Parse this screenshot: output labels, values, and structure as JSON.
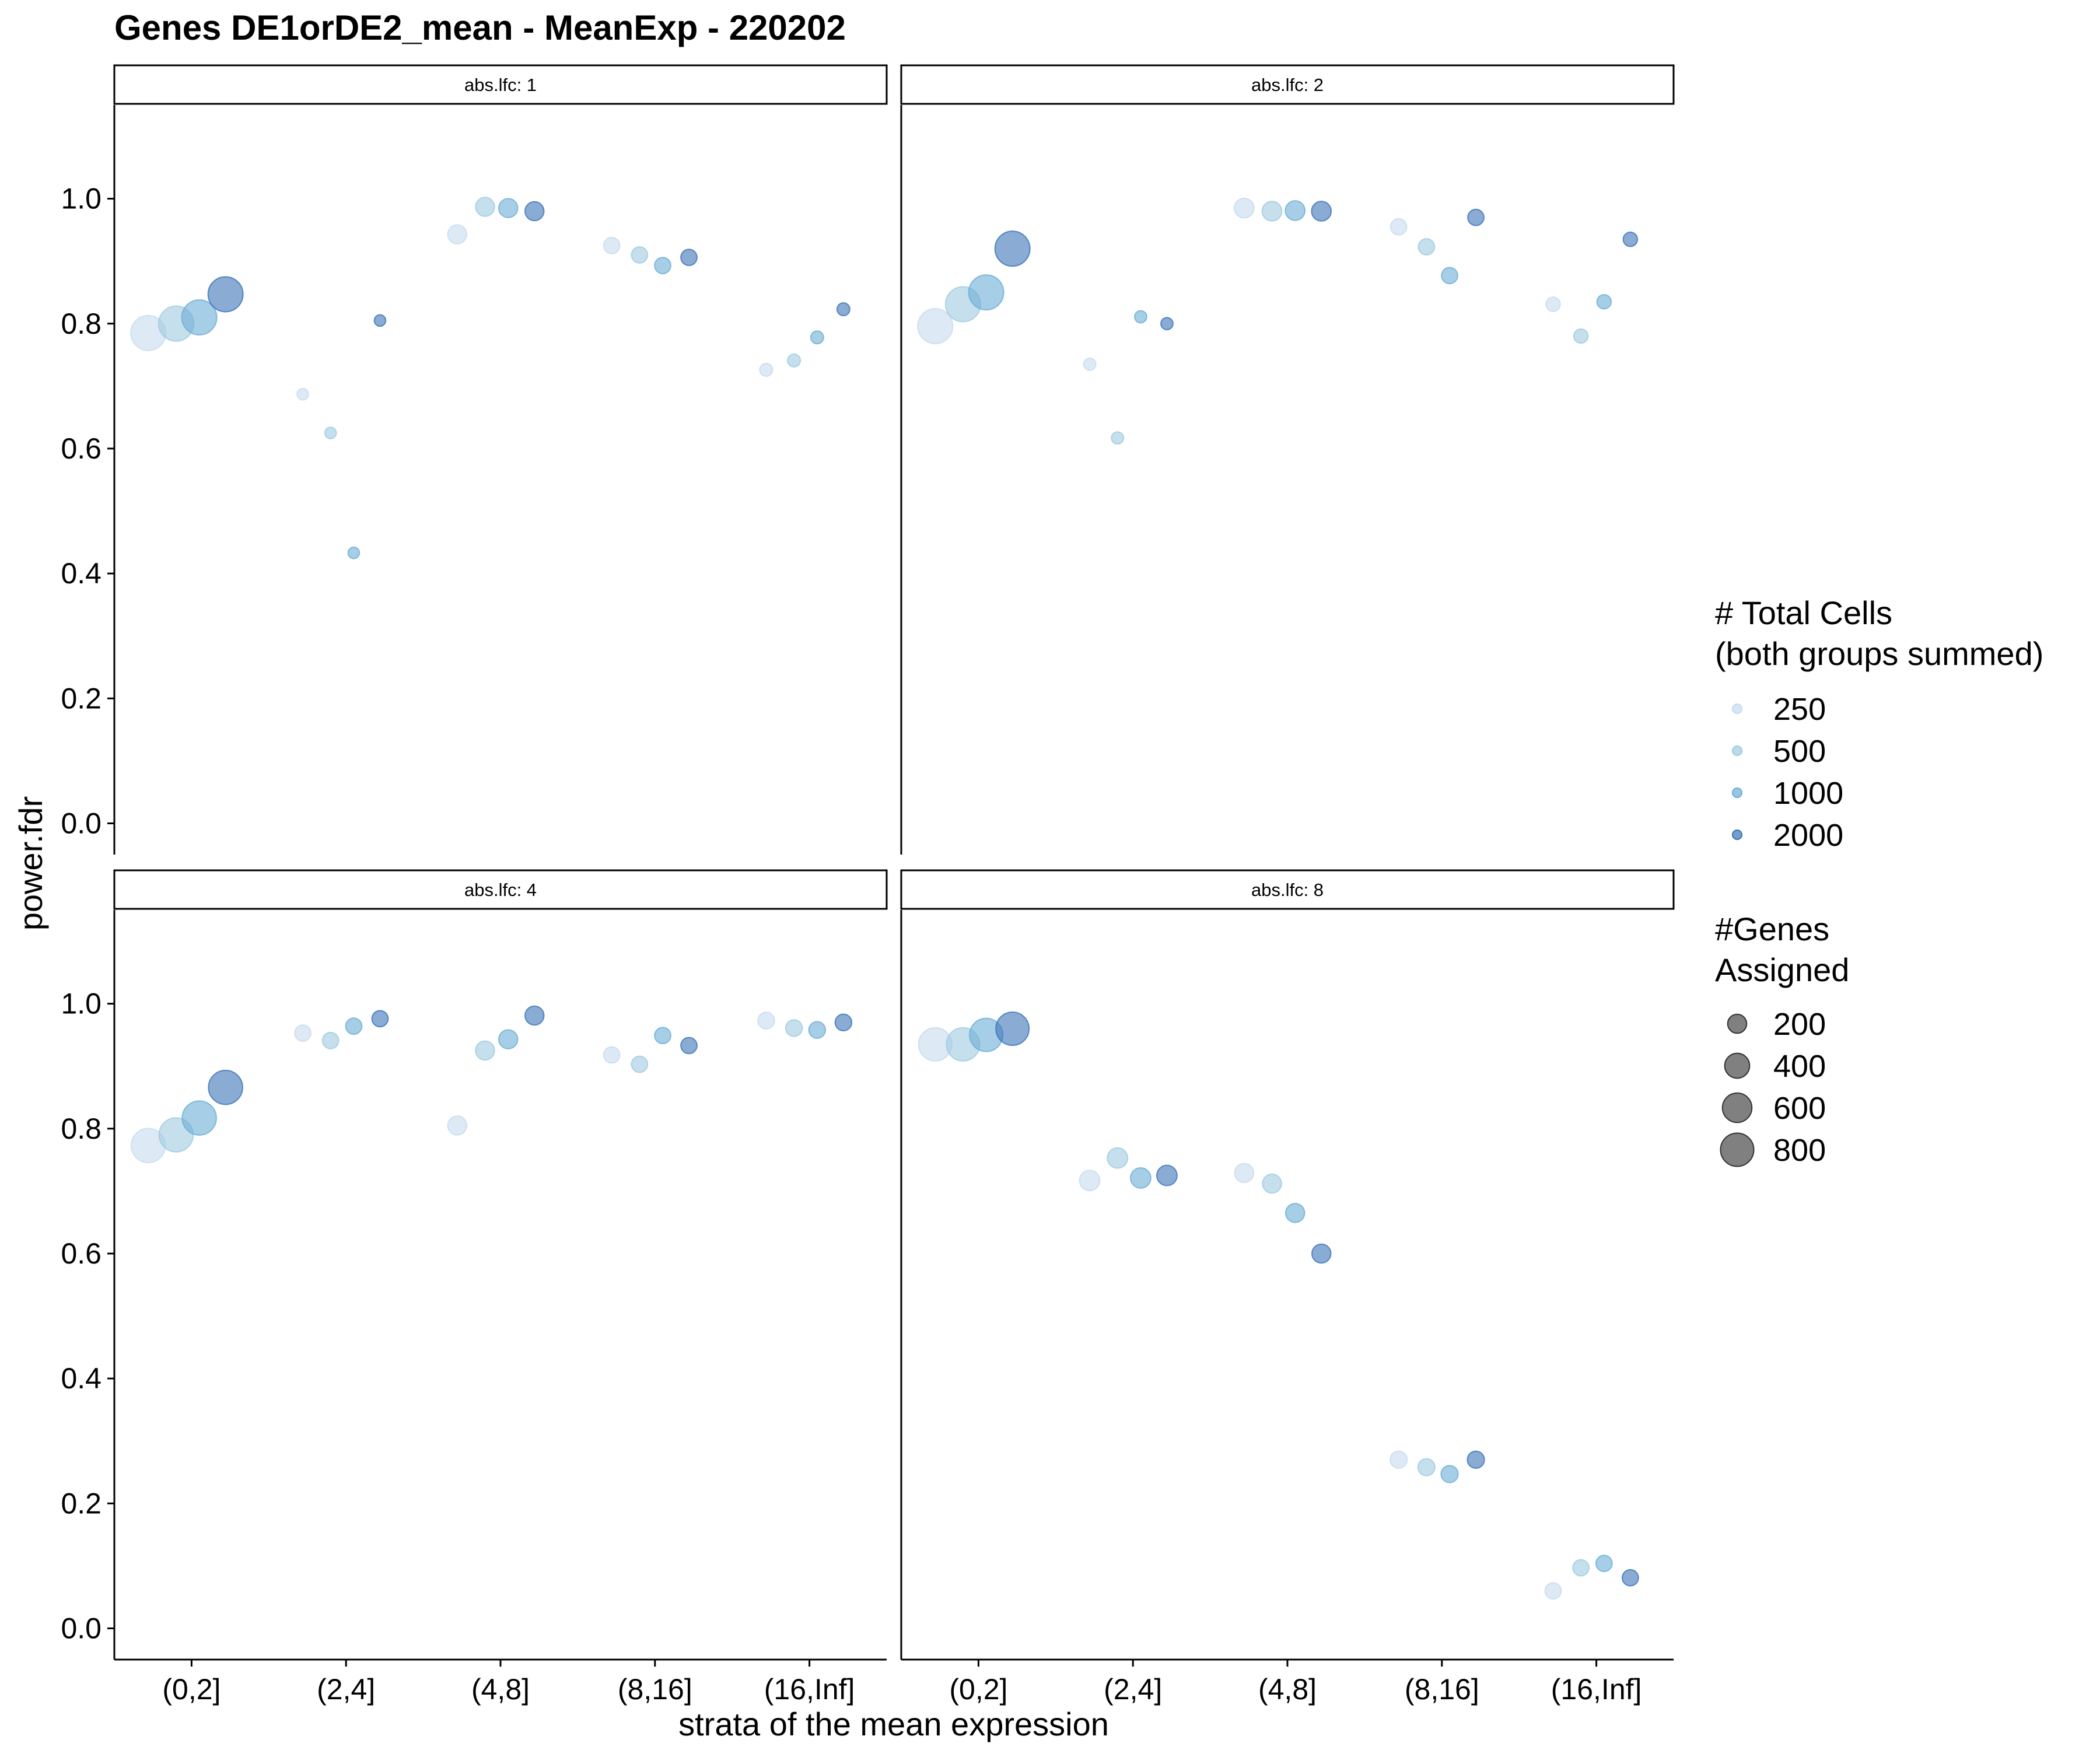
{
  "chart_data": {
    "type": "scatter",
    "title": "Genes DE1orDE2_mean - MeanExp - 220202",
    "xlabel": "strata of the mean expression",
    "ylabel": "power.fdr",
    "categories": [
      "(0,2]",
      "(2,4]",
      "(4,8]",
      "(8,16]",
      "(16,Inf]"
    ],
    "y_ticks": [
      "0.0",
      "0.2",
      "0.4",
      "0.6",
      "0.8",
      "1.0"
    ],
    "ylim": [
      -0.05,
      1.15
    ],
    "grid": false,
    "legend_position": "right",
    "color_legend": {
      "title_line1": "# Total Cells",
      "title_line2": "(both groups summed)",
      "levels": [
        "250",
        "500",
        "1000",
        "2000"
      ],
      "colors": [
        "#c6dbef",
        "#9ecae1",
        "#6baed6",
        "#3a73b8"
      ]
    },
    "size_legend": {
      "title_line1": "#Genes",
      "title_line2": "Assigned",
      "values": [
        "200",
        "400",
        "600",
        "800"
      ],
      "color": "#555555"
    },
    "panels": [
      {
        "strip": "abs.lfc: 1",
        "points": [
          {
            "stratum": "(0,2]",
            "cells": "250",
            "power": 0.785,
            "genes": 900
          },
          {
            "stratum": "(0,2]",
            "cells": "500",
            "power": 0.8,
            "genes": 900
          },
          {
            "stratum": "(0,2]",
            "cells": "1000",
            "power": 0.81,
            "genes": 900
          },
          {
            "stratum": "(0,2]",
            "cells": "2000",
            "power": 0.847,
            "genes": 900
          },
          {
            "stratum": "(2,4]",
            "cells": "250",
            "power": 0.687,
            "genes": 45
          },
          {
            "stratum": "(2,4]",
            "cells": "500",
            "power": 0.625,
            "genes": 45
          },
          {
            "stratum": "(2,4]",
            "cells": "1000",
            "power": 0.433,
            "genes": 45
          },
          {
            "stratum": "(2,4]",
            "cells": "2000",
            "power": 0.805,
            "genes": 45
          },
          {
            "stratum": "(4,8]",
            "cells": "250",
            "power": 0.943,
            "genes": 200
          },
          {
            "stratum": "(4,8]",
            "cells": "500",
            "power": 0.987,
            "genes": 200
          },
          {
            "stratum": "(4,8]",
            "cells": "1000",
            "power": 0.985,
            "genes": 200
          },
          {
            "stratum": "(4,8]",
            "cells": "2000",
            "power": 0.98,
            "genes": 200
          },
          {
            "stratum": "(8,16]",
            "cells": "250",
            "power": 0.925,
            "genes": 130
          },
          {
            "stratum": "(8,16]",
            "cells": "500",
            "power": 0.91,
            "genes": 130
          },
          {
            "stratum": "(8,16]",
            "cells": "1000",
            "power": 0.893,
            "genes": 130
          },
          {
            "stratum": "(8,16]",
            "cells": "2000",
            "power": 0.906,
            "genes": 130
          },
          {
            "stratum": "(16,Inf]",
            "cells": "250",
            "power": 0.726,
            "genes": 65
          },
          {
            "stratum": "(16,Inf]",
            "cells": "500",
            "power": 0.741,
            "genes": 65
          },
          {
            "stratum": "(16,Inf]",
            "cells": "1000",
            "power": 0.778,
            "genes": 65
          },
          {
            "stratum": "(16,Inf]",
            "cells": "2000",
            "power": 0.823,
            "genes": 65
          }
        ]
      },
      {
        "strip": "abs.lfc: 2",
        "points": [
          {
            "stratum": "(0,2]",
            "cells": "250",
            "power": 0.796,
            "genes": 900
          },
          {
            "stratum": "(0,2]",
            "cells": "500",
            "power": 0.831,
            "genes": 900
          },
          {
            "stratum": "(0,2]",
            "cells": "1000",
            "power": 0.85,
            "genes": 900
          },
          {
            "stratum": "(0,2]",
            "cells": "2000",
            "power": 0.92,
            "genes": 900
          },
          {
            "stratum": "(2,4]",
            "cells": "250",
            "power": 0.735,
            "genes": 55
          },
          {
            "stratum": "(2,4]",
            "cells": "500",
            "power": 0.617,
            "genes": 55
          },
          {
            "stratum": "(2,4]",
            "cells": "1000",
            "power": 0.811,
            "genes": 55
          },
          {
            "stratum": "(2,4]",
            "cells": "2000",
            "power": 0.8,
            "genes": 55
          },
          {
            "stratum": "(4,8]",
            "cells": "250",
            "power": 0.985,
            "genes": 220
          },
          {
            "stratum": "(4,8]",
            "cells": "500",
            "power": 0.98,
            "genes": 220
          },
          {
            "stratum": "(4,8]",
            "cells": "1000",
            "power": 0.981,
            "genes": 220
          },
          {
            "stratum": "(4,8]",
            "cells": "2000",
            "power": 0.98,
            "genes": 220
          },
          {
            "stratum": "(8,16]",
            "cells": "250",
            "power": 0.955,
            "genes": 130
          },
          {
            "stratum": "(8,16]",
            "cells": "500",
            "power": 0.923,
            "genes": 130
          },
          {
            "stratum": "(8,16]",
            "cells": "1000",
            "power": 0.877,
            "genes": 130
          },
          {
            "stratum": "(8,16]",
            "cells": "2000",
            "power": 0.97,
            "genes": 130
          },
          {
            "stratum": "(16,Inf]",
            "cells": "250",
            "power": 0.831,
            "genes": 90
          },
          {
            "stratum": "(16,Inf]",
            "cells": "500",
            "power": 0.78,
            "genes": 90
          },
          {
            "stratum": "(16,Inf]",
            "cells": "1000",
            "power": 0.835,
            "genes": 90
          },
          {
            "stratum": "(16,Inf]",
            "cells": "2000",
            "power": 0.935,
            "genes": 90
          }
        ]
      },
      {
        "strip": "abs.lfc: 4",
        "points": [
          {
            "stratum": "(0,2]",
            "cells": "250",
            "power": 0.773,
            "genes": 850
          },
          {
            "stratum": "(0,2]",
            "cells": "500",
            "power": 0.79,
            "genes": 850
          },
          {
            "stratum": "(0,2]",
            "cells": "1000",
            "power": 0.817,
            "genes": 850
          },
          {
            "stratum": "(0,2]",
            "cells": "2000",
            "power": 0.866,
            "genes": 850
          },
          {
            "stratum": "(2,4]",
            "cells": "250",
            "power": 0.953,
            "genes": 130
          },
          {
            "stratum": "(2,4]",
            "cells": "500",
            "power": 0.941,
            "genes": 130
          },
          {
            "stratum": "(2,4]",
            "cells": "1000",
            "power": 0.964,
            "genes": 130
          },
          {
            "stratum": "(2,4]",
            "cells": "2000",
            "power": 0.976,
            "genes": 130
          },
          {
            "stratum": "(4,8]",
            "cells": "250",
            "power": 0.805,
            "genes": 200
          },
          {
            "stratum": "(4,8]",
            "cells": "500",
            "power": 0.925,
            "genes": 200
          },
          {
            "stratum": "(4,8]",
            "cells": "1000",
            "power": 0.943,
            "genes": 200
          },
          {
            "stratum": "(4,8]",
            "cells": "2000",
            "power": 0.981,
            "genes": 200
          },
          {
            "stratum": "(8,16]",
            "cells": "250",
            "power": 0.918,
            "genes": 130
          },
          {
            "stratum": "(8,16]",
            "cells": "500",
            "power": 0.903,
            "genes": 130
          },
          {
            "stratum": "(8,16]",
            "cells": "1000",
            "power": 0.949,
            "genes": 130
          },
          {
            "stratum": "(8,16]",
            "cells": "2000",
            "power": 0.933,
            "genes": 130
          },
          {
            "stratum": "(16,Inf]",
            "cells": "250",
            "power": 0.973,
            "genes": 140
          },
          {
            "stratum": "(16,Inf]",
            "cells": "500",
            "power": 0.961,
            "genes": 140
          },
          {
            "stratum": "(16,Inf]",
            "cells": "1000",
            "power": 0.958,
            "genes": 140
          },
          {
            "stratum": "(16,Inf]",
            "cells": "2000",
            "power": 0.97,
            "genes": 140
          }
        ]
      },
      {
        "strip": "abs.lfc: 8",
        "points": [
          {
            "stratum": "(0,2]",
            "cells": "250",
            "power": 0.935,
            "genes": 800
          },
          {
            "stratum": "(0,2]",
            "cells": "500",
            "power": 0.935,
            "genes": 800
          },
          {
            "stratum": "(0,2]",
            "cells": "1000",
            "power": 0.95,
            "genes": 800
          },
          {
            "stratum": "(0,2]",
            "cells": "2000",
            "power": 0.96,
            "genes": 800
          },
          {
            "stratum": "(2,4]",
            "cells": "250",
            "power": 0.717,
            "genes": 240
          },
          {
            "stratum": "(2,4]",
            "cells": "500",
            "power": 0.753,
            "genes": 240
          },
          {
            "stratum": "(2,4]",
            "cells": "1000",
            "power": 0.721,
            "genes": 240
          },
          {
            "stratum": "(2,4]",
            "cells": "2000",
            "power": 0.725,
            "genes": 240
          },
          {
            "stratum": "(4,8]",
            "cells": "250",
            "power": 0.729,
            "genes": 200
          },
          {
            "stratum": "(4,8]",
            "cells": "500",
            "power": 0.712,
            "genes": 200
          },
          {
            "stratum": "(4,8]",
            "cells": "1000",
            "power": 0.665,
            "genes": 200
          },
          {
            "stratum": "(4,8]",
            "cells": "2000",
            "power": 0.6,
            "genes": 200
          },
          {
            "stratum": "(8,16]",
            "cells": "250",
            "power": 0.27,
            "genes": 150
          },
          {
            "stratum": "(8,16]",
            "cells": "500",
            "power": 0.258,
            "genes": 150
          },
          {
            "stratum": "(8,16]",
            "cells": "1000",
            "power": 0.247,
            "genes": 150
          },
          {
            "stratum": "(8,16]",
            "cells": "2000",
            "power": 0.27,
            "genes": 150
          },
          {
            "stratum": "(16,Inf]",
            "cells": "250",
            "power": 0.06,
            "genes": 130
          },
          {
            "stratum": "(16,Inf]",
            "cells": "500",
            "power": 0.097,
            "genes": 130
          },
          {
            "stratum": "(16,Inf]",
            "cells": "1000",
            "power": 0.104,
            "genes": 130
          },
          {
            "stratum": "(16,Inf]",
            "cells": "2000",
            "power": 0.081,
            "genes": 130
          }
        ]
      }
    ]
  }
}
